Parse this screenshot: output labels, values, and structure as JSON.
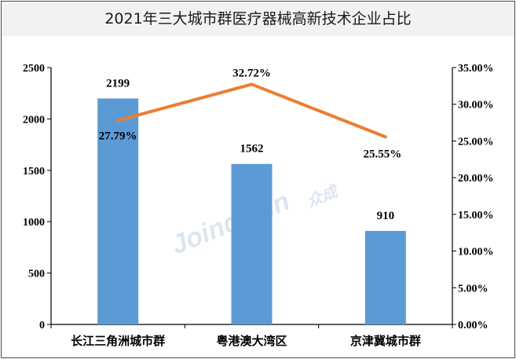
{
  "chart_data": {
    "type": "bar",
    "title": "2021年三大城市群医疗器械高新技术企业占比",
    "categories": [
      "长江三角洲城市群",
      "粤港澳大湾区",
      "京津冀城市群"
    ],
    "series": [
      {
        "type": "bar",
        "axis": "left",
        "values": [
          2199,
          1562,
          910
        ],
        "labels": [
          "2199",
          "1562",
          "910"
        ]
      },
      {
        "type": "line",
        "axis": "right",
        "values": [
          27.79,
          32.72,
          25.55
        ],
        "labels": [
          "27.79%",
          "32.72%",
          "25.55%"
        ]
      }
    ],
    "y_left": {
      "range": [
        0,
        2500
      ],
      "ticks": [
        "0",
        "500",
        "1000",
        "1500",
        "2000",
        "2500"
      ]
    },
    "y_right": {
      "range": [
        0,
        35
      ],
      "ticks": [
        "0.00%",
        "5.00%",
        "10.00%",
        "15.00%",
        "20.00%",
        "25.00%",
        "30.00%",
        "35.00%"
      ]
    },
    "colors": {
      "bar": "#5b9bd5",
      "line": "#ed7d31",
      "title_bg": "#f2f2f2"
    },
    "watermark": {
      "text": "Joinchain",
      "text_cn": "众成"
    },
    "grid": false,
    "legend": "none"
  }
}
